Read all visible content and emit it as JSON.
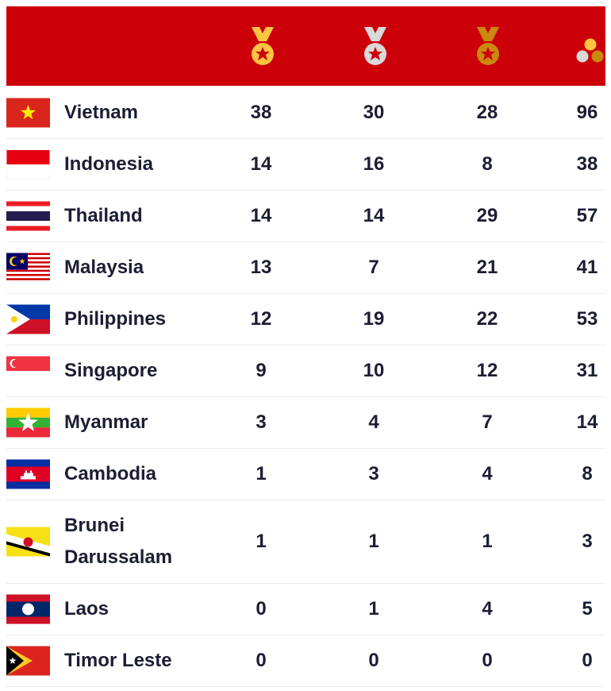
{
  "header": {
    "columns": [
      {
        "icon": "gold-medal-icon",
        "color": "#ffc441"
      },
      {
        "icon": "silver-medal-icon",
        "color": "#d9d9d9"
      },
      {
        "icon": "bronze-medal-icon",
        "color": "#c98a0e"
      },
      {
        "icon": "total-medals-icon"
      }
    ],
    "background": "#cc0009"
  },
  "rows": [
    {
      "country": "Vietnam",
      "flag": "vn",
      "gold": "38",
      "silver": "30",
      "bronze": "28",
      "total": "96"
    },
    {
      "country": "Indonesia",
      "flag": "id",
      "gold": "14",
      "silver": "16",
      "bronze": "8",
      "total": "38"
    },
    {
      "country": "Thailand",
      "flag": "th",
      "gold": "14",
      "silver": "14",
      "bronze": "29",
      "total": "57"
    },
    {
      "country": "Malaysia",
      "flag": "my",
      "gold": "13",
      "silver": "7",
      "bronze": "21",
      "total": "41"
    },
    {
      "country": "Philippines",
      "flag": "ph",
      "gold": "12",
      "silver": "19",
      "bronze": "22",
      "total": "53"
    },
    {
      "country": "Singapore",
      "flag": "sg",
      "gold": "9",
      "silver": "10",
      "bronze": "12",
      "total": "31"
    },
    {
      "country": "Myanmar",
      "flag": "mm",
      "gold": "3",
      "silver": "4",
      "bronze": "7",
      "total": "14"
    },
    {
      "country": "Cambodia",
      "flag": "kh",
      "gold": "1",
      "silver": "3",
      "bronze": "4",
      "total": "8"
    },
    {
      "country": "Brunei Darussalam",
      "flag": "bn",
      "gold": "1",
      "silver": "1",
      "bronze": "1",
      "total": "3"
    },
    {
      "country": "Laos",
      "flag": "la",
      "gold": "0",
      "silver": "1",
      "bronze": "4",
      "total": "5"
    },
    {
      "country": "Timor Leste",
      "flag": "tl",
      "gold": "0",
      "silver": "0",
      "bronze": "0",
      "total": "0"
    }
  ]
}
